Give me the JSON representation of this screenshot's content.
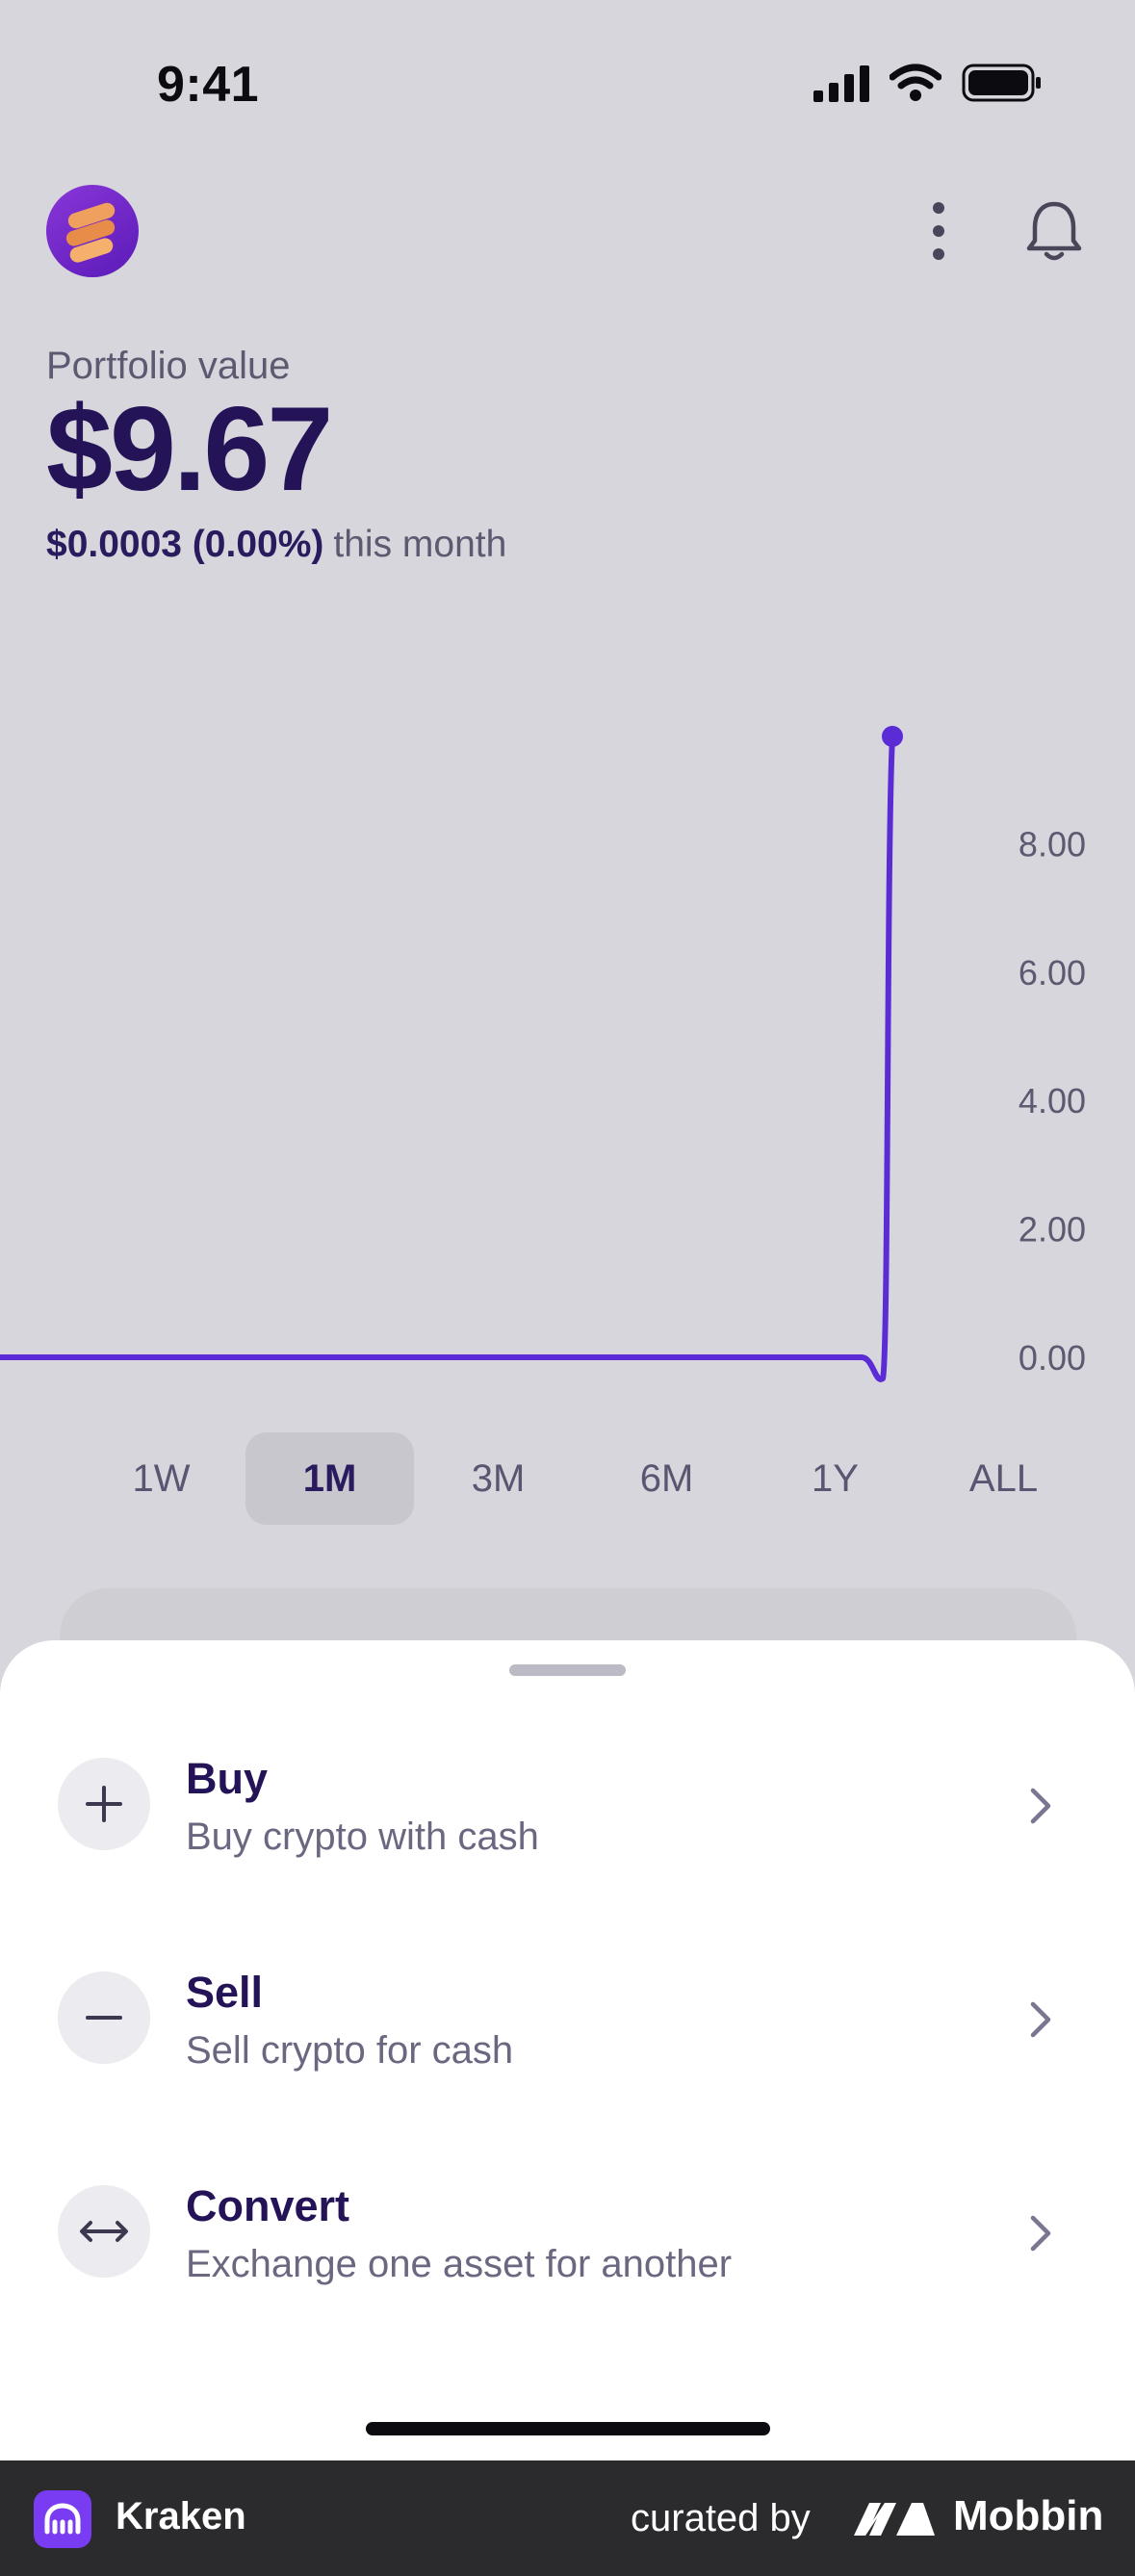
{
  "status_bar": {
    "time": "9:41"
  },
  "header": {
    "avatar": "avatar",
    "more_icon": "more-vertical-icon",
    "bell_icon": "bell-icon"
  },
  "portfolio": {
    "label": "Portfolio value",
    "value": "$9.67",
    "change": "$0.0003 (0.00%)",
    "period_text": "this month"
  },
  "chart_data": {
    "type": "line",
    "y_ticks": [
      "8.00",
      "6.00",
      "4.00",
      "2.00",
      "0.00"
    ],
    "ylim": [
      0,
      9.67
    ],
    "series": [
      {
        "values": [
          0,
          0,
          0,
          0,
          0,
          0,
          0,
          0,
          0,
          0,
          0,
          0,
          0,
          0,
          0,
          0,
          0,
          0,
          0,
          0,
          0,
          0,
          0,
          0,
          0,
          0,
          0,
          0,
          0,
          9.67
        ]
      }
    ],
    "line_color": "#5b2bd6"
  },
  "ranges": {
    "items": [
      "1W",
      "1M",
      "3M",
      "6M",
      "1Y",
      "ALL"
    ],
    "selected": "1M"
  },
  "actions": [
    {
      "title": "Buy",
      "subtitle": "Buy crypto with cash",
      "icon": "plus-icon"
    },
    {
      "title": "Sell",
      "subtitle": "Sell crypto for cash",
      "icon": "minus-icon"
    },
    {
      "title": "Convert",
      "subtitle": "Exchange one asset for another",
      "icon": "swap-arrows-icon"
    }
  ],
  "footer": {
    "app_name": "Kraken",
    "curated_by": "curated by",
    "brand": "Mobbin"
  },
  "colors": {
    "accent": "#5b2bd6",
    "text_primary": "#241457",
    "background": "#d7d6dc"
  }
}
